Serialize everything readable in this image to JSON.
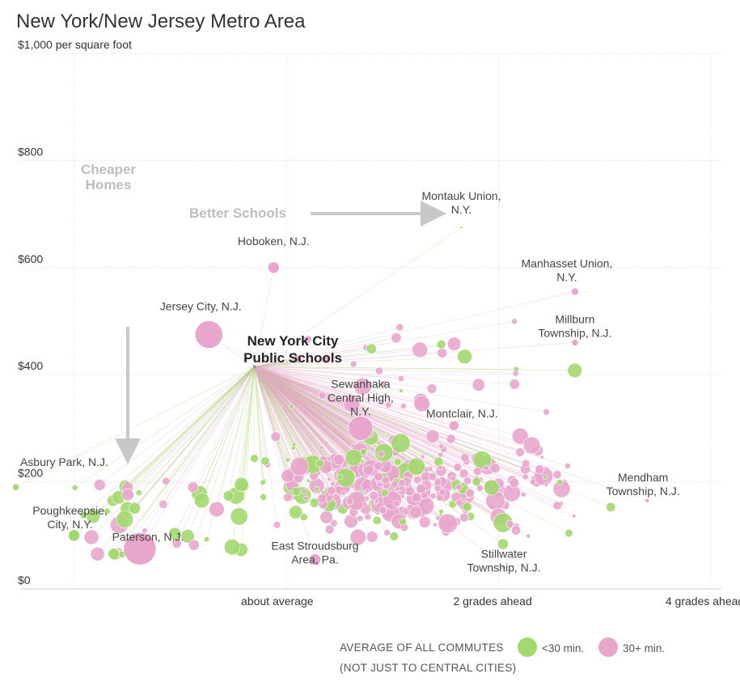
{
  "chart_data": {
    "type": "scatter",
    "title": "New York/New Jersey Metro Area",
    "y_axis": {
      "range": [
        0,
        1000
      ],
      "ticks": [
        {
          "value": 0,
          "label": "$0"
        },
        {
          "value": 200,
          "label": "$200"
        },
        {
          "value": 400,
          "label": "$400"
        },
        {
          "value": 600,
          "label": "$600"
        },
        {
          "value": 800,
          "label": "$800"
        },
        {
          "value": 1000,
          "label": "$1,000 per square foot"
        }
      ]
    },
    "x_axis": {
      "range": [
        -2.5,
        4.1
      ],
      "grid": [
        -2,
        0,
        2,
        4
      ],
      "ticks": [
        {
          "value": 0,
          "label": "about average"
        },
        {
          "value": 2,
          "label": "2 grades ahead"
        },
        {
          "value": 4,
          "label": "4 grades ahead"
        }
      ]
    },
    "grid": true,
    "center": {
      "name": "New York City Public Schools",
      "x": -0.3,
      "y": 415,
      "label_lines": [
        "New York City",
        "Public Schools"
      ]
    },
    "annotations": {
      "cheaper_homes": [
        "Cheaper",
        "Homes"
      ],
      "better_schools": "Better Schools"
    },
    "labeled_districts": [
      {
        "label_lines": [
          "Montauk Union,",
          "N.Y."
        ],
        "x": 1.65,
        "y": 675,
        "size": 3,
        "group": "lt30"
      },
      {
        "label_lines": [
          "Hoboken, N.J."
        ],
        "x": -0.12,
        "y": 600,
        "size": 14,
        "group": "30plus"
      },
      {
        "label_lines": [
          "Manhasset Union,",
          "N.Y."
        ],
        "x": 2.72,
        "y": 555,
        "size": 9,
        "group": "30plus"
      },
      {
        "label_lines": [
          "Jersey City, N.J."
        ],
        "x": -0.73,
        "y": 475,
        "size": 34,
        "group": "30plus"
      },
      {
        "label_lines": [
          "Millburn",
          "Township, N.J."
        ],
        "x": 2.72,
        "y": 460,
        "size": 8,
        "group": "30plus"
      },
      {
        "label_lines": [
          "Sewanhaka",
          "Central High,",
          "N.Y."
        ],
        "x": 0.7,
        "y": 300,
        "size": 30,
        "group": "30plus"
      },
      {
        "label_lines": [
          "Montclair, N.J."
        ],
        "x": 1.58,
        "y": 305,
        "size": 12,
        "group": "30plus"
      },
      {
        "label_lines": [
          "Asbury Park, N.J."
        ],
        "x": -2.55,
        "y": 190,
        "size": 8,
        "group": "lt30"
      },
      {
        "label_lines": [
          "Mendham",
          "Township, N.J."
        ],
        "x": 3.4,
        "y": 165,
        "size": 5,
        "group": "30plus"
      },
      {
        "label_lines": [
          "Poughkeepsie,",
          "City, N.Y."
        ],
        "x": -2.0,
        "y": 100,
        "size": 14,
        "group": "lt30"
      },
      {
        "label_lines": [
          "Paterson, N.J."
        ],
        "x": -1.38,
        "y": 75,
        "size": 40,
        "group": "30plus"
      },
      {
        "label_lines": [
          "East Stroudsburg",
          "Area, Pa."
        ],
        "x": 0.27,
        "y": 55,
        "size": 14,
        "group": "30plus"
      },
      {
        "label_lines": [
          "Stillwater",
          "Township, N.J."
        ],
        "x": 2.05,
        "y": 40,
        "size": 4,
        "group": "30plus"
      }
    ],
    "series": [
      {
        "name": "<30 min.",
        "color": "#a3d86f"
      },
      {
        "name": "30+ min.",
        "color": "#e9a6cc"
      }
    ],
    "legend": {
      "title_lines": [
        "AVERAGE OF ALL COMMUTES",
        "(NOT JUST TO CENTRAL CITIES)"
      ],
      "position": "bottom-right"
    }
  }
}
